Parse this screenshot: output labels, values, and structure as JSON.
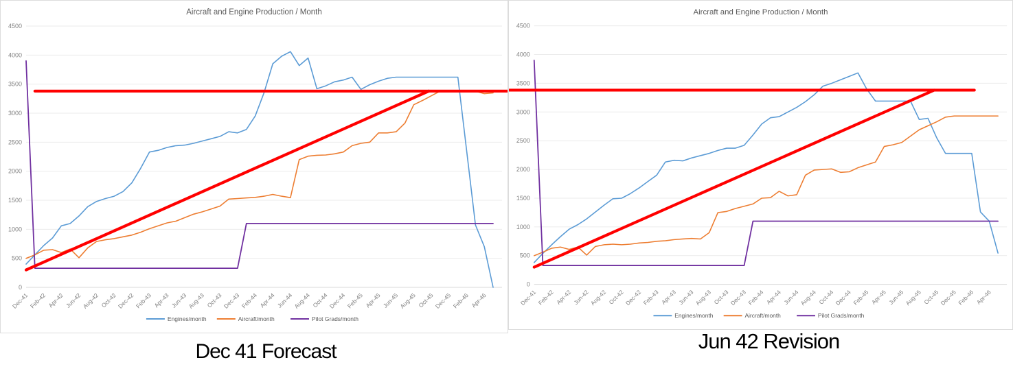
{
  "page_background": "#ffffff",
  "colors": {
    "engines_blue": "#5B9BD5",
    "aircraft_orange": "#ED7D31",
    "pilots_purple": "#7030A0",
    "reference_red": "#FF0000",
    "title_gray": "#595959",
    "axis_label_gray": "#808080",
    "gridline_gray": "#EBEBEB",
    "axis_line_gray": "#D9D9D9"
  },
  "months": [
    "Dec-41",
    "Jan-42",
    "Feb-42",
    "Mar-42",
    "Apr-42",
    "May-42",
    "Jun-42",
    "Jul-42",
    "Aug-42",
    "Sep-42",
    "Oct-42",
    "Nov-42",
    "Dec-42",
    "Jan-43",
    "Feb-43",
    "Mar-43",
    "Apr-43",
    "May-43",
    "Jun-43",
    "Jul-43",
    "Aug-43",
    "Sep-43",
    "Oct-43",
    "Nov-43",
    "Dec-43",
    "Jan-44",
    "Feb-44",
    "Mar-44",
    "Apr-44",
    "May-44",
    "Jun-44",
    "Jul-44",
    "Aug-44",
    "Sep-44",
    "Oct-44",
    "Nov-44",
    "Dec-44",
    "Jan-45",
    "Feb-45",
    "Mar-45",
    "Apr-45",
    "May-45",
    "Jun-45",
    "Jul-45",
    "Aug-45",
    "Sep-45",
    "Oct-45",
    "Nov-45",
    "Dec-45",
    "Jan-46",
    "Feb-46",
    "Mar-46",
    "Apr-46",
    "May-46"
  ],
  "x_tick_every": 2,
  "chart_data": [
    {
      "type": "line",
      "title": "Aircraft and Engine Production / Month",
      "caption": "Dec 41 Forecast",
      "ylim": [
        0,
        4500
      ],
      "y_ticks": [
        "0",
        "500",
        "1000",
        "1500",
        "2000",
        "2500",
        "3000",
        "3500",
        "4000",
        "4500"
      ],
      "grid": "horizontal",
      "legend_position": "bottom",
      "series": [
        {
          "name": "Engines/month",
          "color": "#5B9BD5",
          "values": [
            400,
            560,
            720,
            850,
            1060,
            1100,
            1230,
            1390,
            1480,
            1530,
            1570,
            1650,
            1800,
            2050,
            2330,
            2360,
            2410,
            2440,
            2450,
            2480,
            2520,
            2560,
            2600,
            2680,
            2660,
            2720,
            2950,
            3350,
            3850,
            3980,
            4060,
            3820,
            3950,
            3420,
            3470,
            3540,
            3570,
            3620,
            3410,
            3490,
            3550,
            3600,
            3620,
            3620,
            3620,
            3620,
            3620,
            3620,
            3620,
            3620,
            2350,
            1075,
            700,
            0
          ]
        },
        {
          "name": "Aircraft/month",
          "color": "#ED7D31",
          "values": [
            500,
            560,
            640,
            650,
            600,
            660,
            510,
            680,
            790,
            820,
            840,
            870,
            900,
            950,
            1010,
            1060,
            1110,
            1140,
            1200,
            1260,
            1300,
            1350,
            1400,
            1520,
            1530,
            1540,
            1550,
            1570,
            1600,
            1570,
            1545,
            2200,
            2260,
            2275,
            2280,
            2300,
            2330,
            2440,
            2480,
            2500,
            2660,
            2660,
            2680,
            2830,
            3145,
            3220,
            3300,
            3380,
            3390,
            3390,
            3385,
            3380,
            3335,
            3350
          ]
        },
        {
          "name": "Pilot Grads/month",
          "color": "#7030A0",
          "values": [
            3900,
            330,
            330,
            330,
            330,
            330,
            330,
            330,
            330,
            330,
            330,
            330,
            330,
            330,
            330,
            330,
            330,
            330,
            330,
            330,
            330,
            330,
            330,
            330,
            330,
            1100,
            1100,
            1100,
            1100,
            1100,
            1100,
            1100,
            1100,
            1100,
            1100,
            1100,
            1100,
            1100,
            1100,
            1100,
            1100,
            1100,
            1100,
            1100,
            1100,
            1100,
            1100,
            1100,
            1100,
            1100,
            1100,
            1100,
            1100,
            1100
          ]
        }
      ],
      "reference_lines": [
        {
          "name": "production-limit",
          "type": "horizontal",
          "value": 3380,
          "color": "#FF0000",
          "from_month": 1.0,
          "to_month": 54.8
        },
        {
          "name": "planned-ramp",
          "type": "segment",
          "color": "#FF0000",
          "from": {
            "month": 0,
            "value": 300
          },
          "to": {
            "month": 45.7,
            "value": 3380
          }
        }
      ]
    },
    {
      "type": "line",
      "title": "Aircraft and Engine Production / Month",
      "caption": "Jun 42 Revision",
      "ylim": [
        0,
        4500
      ],
      "y_ticks": [
        "0",
        "500",
        "1000",
        "1500",
        "2000",
        "2500",
        "3000",
        "3500",
        "4000",
        "4500"
      ],
      "grid": "horizontal",
      "legend_position": "bottom",
      "series": [
        {
          "name": "Engines/month",
          "color": "#5B9BD5",
          "values": [
            380,
            540,
            690,
            830,
            960,
            1040,
            1140,
            1260,
            1380,
            1490,
            1500,
            1580,
            1680,
            1790,
            1900,
            2130,
            2160,
            2150,
            2200,
            2240,
            2280,
            2330,
            2370,
            2370,
            2420,
            2600,
            2790,
            2900,
            2920,
            3000,
            3080,
            3180,
            3300,
            3450,
            3500,
            3560,
            3620,
            3680,
            3400,
            3190,
            3190,
            3190,
            3190,
            3190,
            2870,
            2890,
            2550,
            2280,
            2280,
            2280,
            2280,
            1260,
            1100,
            545
          ]
        },
        {
          "name": "Aircraft/month",
          "color": "#ED7D31",
          "values": [
            500,
            560,
            630,
            650,
            610,
            650,
            510,
            660,
            690,
            700,
            690,
            700,
            720,
            730,
            750,
            760,
            780,
            790,
            800,
            790,
            900,
            1250,
            1270,
            1320,
            1360,
            1400,
            1500,
            1510,
            1620,
            1540,
            1560,
            1900,
            1990,
            2000,
            2010,
            1950,
            1960,
            2030,
            2080,
            2130,
            2400,
            2430,
            2470,
            2580,
            2690,
            2760,
            2830,
            2910,
            2930,
            2930,
            2930,
            2930,
            2930,
            2930
          ]
        },
        {
          "name": "Pilot Grads/month",
          "color": "#7030A0",
          "values": [
            3900,
            330,
            330,
            330,
            330,
            330,
            330,
            330,
            330,
            330,
            330,
            330,
            330,
            330,
            330,
            330,
            330,
            330,
            330,
            330,
            330,
            330,
            330,
            330,
            330,
            1100,
            1100,
            1100,
            1100,
            1100,
            1100,
            1100,
            1100,
            1100,
            1100,
            1100,
            1100,
            1100,
            1100,
            1100,
            1100,
            1100,
            1100,
            1100,
            1100,
            1100,
            1100,
            1100,
            1100,
            1100,
            1100,
            1100,
            1100,
            1100
          ]
        }
      ],
      "reference_lines": [
        {
          "name": "production-limit",
          "type": "horizontal",
          "value": 3380,
          "color": "#FF0000",
          "from_month": -2.9,
          "to_month": 50.3
        },
        {
          "name": "planned-ramp",
          "type": "segment",
          "color": "#FF0000",
          "from": {
            "month": 0,
            "value": 300
          },
          "to": {
            "month": 45.7,
            "value": 3380
          }
        }
      ]
    }
  ]
}
